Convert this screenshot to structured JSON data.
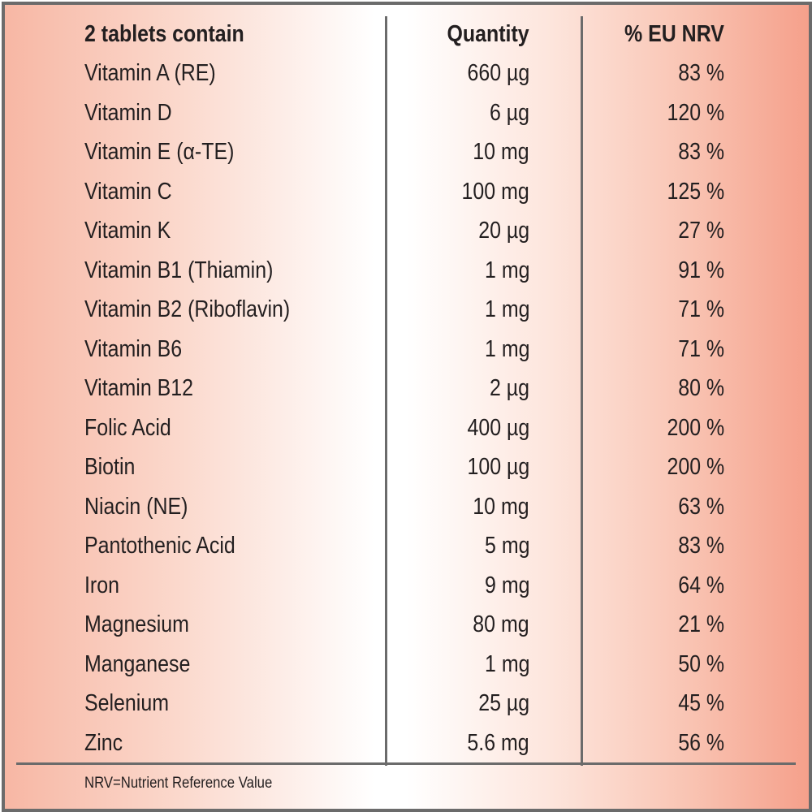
{
  "table": {
    "headers": [
      "2 tablets contain",
      "Quantity",
      "% EU NRV"
    ],
    "rows": [
      [
        "Vitamin A (RE)",
        "660 µg",
        "83 %"
      ],
      [
        "Vitamin D",
        "6 µg",
        "120 %"
      ],
      [
        "Vitamin E (α-TE)",
        "10 mg",
        "83 %"
      ],
      [
        "Vitamin C",
        "100 mg",
        "125 %"
      ],
      [
        "Vitamin K",
        "20 µg",
        "27 %"
      ],
      [
        "Vitamin B1 (Thiamin)",
        "1 mg",
        "91 %"
      ],
      [
        "Vitamin B2 (Riboflavin)",
        "1 mg",
        "71 %"
      ],
      [
        "Vitamin B6",
        "1 mg",
        "71 %"
      ],
      [
        "Vitamin B12",
        "2 µg",
        "80 %"
      ],
      [
        "Folic Acid",
        "400 µg",
        "200 %"
      ],
      [
        "Biotin",
        "100 µg",
        "200 %"
      ],
      [
        "Niacin (NE)",
        "10 mg",
        "63 %"
      ],
      [
        "Pantothenic Acid",
        "5 mg",
        "83 %"
      ],
      [
        "Iron",
        "9 mg",
        "64 %"
      ],
      [
        "Magnesium",
        "80 mg",
        "21 %"
      ],
      [
        "Manganese",
        "1 mg",
        "50 %"
      ],
      [
        "Selenium",
        "25 µg",
        "45 %"
      ],
      [
        "Zinc",
        "5.6 mg",
        "56 %"
      ]
    ],
    "footnote": "NRV=Nutrient Reference Value"
  },
  "colors": {
    "border": "#6b6b6b",
    "accent": "#f5a08b"
  }
}
